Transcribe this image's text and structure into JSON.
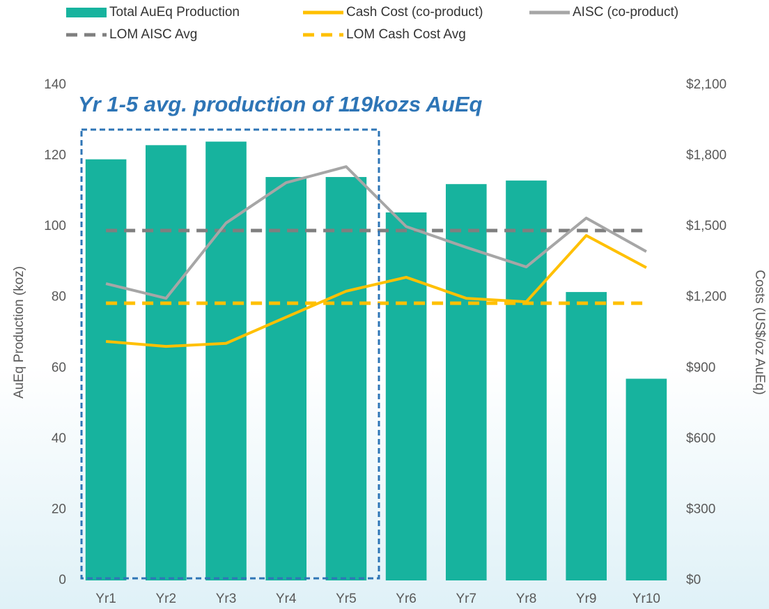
{
  "chart_data": {
    "type": "bar",
    "annotation": "Yr 1-5 avg. production of 119kozs AuEq",
    "ylabel": "AuEq Production (koz)",
    "y2label": "Costs (US$/oz AuEq)",
    "categories": [
      "Yr1",
      "Yr2",
      "Yr3",
      "Yr4",
      "Yr5",
      "Yr6",
      "Yr7",
      "Yr8",
      "Yr9",
      "Yr10"
    ],
    "series": [
      {
        "name": "Total AuEq Production",
        "type": "bar",
        "color": "#17b39e",
        "values": [
          119,
          123,
          124,
          114,
          114,
          104,
          112,
          113,
          81.5,
          57
        ]
      },
      {
        "name": "Cash Cost (co-product)",
        "type": "line",
        "axis": "y2",
        "color": "#ffc000",
        "values": [
          1013,
          992,
          1005,
          1116,
          1226,
          1285,
          1196,
          1181,
          1462,
          1326
        ]
      },
      {
        "name": "AISC (co-product)",
        "type": "line",
        "axis": "y2",
        "color": "#a6a6a6",
        "values": [
          1258,
          1196,
          1515,
          1686,
          1754,
          1500,
          1412,
          1329,
          1536,
          1394
        ]
      },
      {
        "name": "LOM AISC Avg",
        "type": "line",
        "axis": "y2",
        "dashed": true,
        "color": "#7f7f7f",
        "values": [
          1483,
          1483,
          1483,
          1483,
          1483,
          1483,
          1483,
          1483,
          1483,
          1483
        ]
      },
      {
        "name": "LOM Cash Cost Avg",
        "type": "line",
        "axis": "y2",
        "dashed": true,
        "color": "#ffc000",
        "values": [
          1175,
          1175,
          1175,
          1175,
          1175,
          1175,
          1175,
          1175,
          1175,
          1175
        ]
      }
    ],
    "ylim": [
      0,
      140
    ],
    "yticks": [
      0,
      20,
      40,
      60,
      80,
      100,
      120,
      140
    ],
    "y2lim": [
      0,
      2100
    ],
    "y2ticks": [
      {
        "value": 0,
        "label": "$0"
      },
      {
        "value": 300,
        "label": "$300"
      },
      {
        "value": 600,
        "label": "$600"
      },
      {
        "value": 900,
        "label": "$900"
      },
      {
        "value": 1200,
        "label": "$1,200"
      },
      {
        "value": 1500,
        "label": "$1,500"
      },
      {
        "value": 1800,
        "label": "$1,800"
      },
      {
        "value": 2100,
        "label": "$2,100"
      }
    ],
    "grid": false
  }
}
